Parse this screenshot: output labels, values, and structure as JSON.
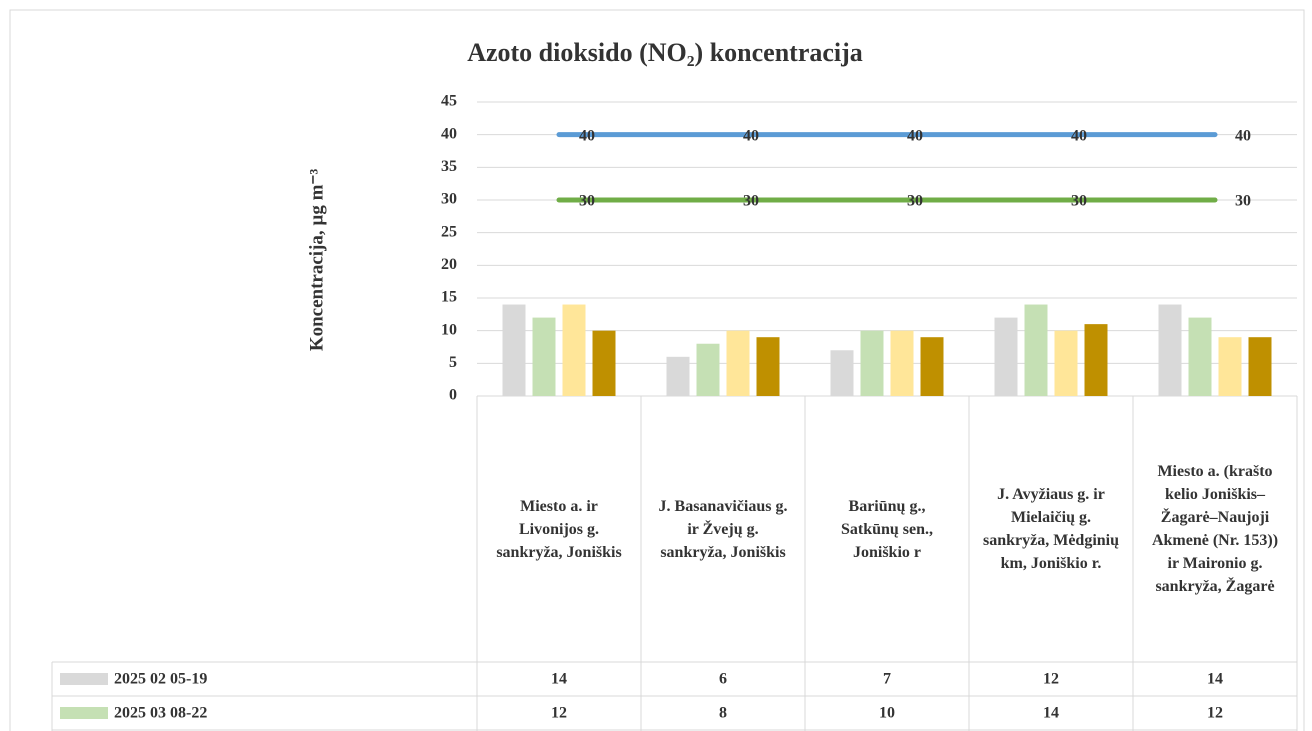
{
  "chart_data": {
    "type": "bar",
    "title": "Azoto dioksido (NO₂) koncentracija",
    "y_label": "Koncentracija, µg m⁻³",
    "categories": [
      "Miesto a. ir Livonijos g. sankryža, Joniškis",
      "J. Basanavičiaus g. ir Žvejų g. sankryža, Joniškis",
      "Bariūnų g., Satkūnų sen., Joniškio r",
      "J. Avyžiaus g. ir Mielaičių g. sankryža, Mėdginių km, Joniškio r.",
      "Miesto a. (krašto kelio Joniškis–Žagarė–Naujoji Akmenė (Nr. 153)) ir Maironio g. sankryža, Žagarė"
    ],
    "series": [
      {
        "name": "2025 02 05-19",
        "color": "#d9d9d9",
        "values": [
          14,
          6,
          7,
          12,
          14
        ]
      },
      {
        "name": "2025 03 08-22",
        "color": "#c5e0b4",
        "values": [
          12,
          8,
          10,
          14,
          12
        ]
      },
      {
        "color": "#ffe699",
        "values": [
          14,
          10,
          10,
          10,
          9
        ]
      },
      {
        "color": "#bf9000",
        "values": [
          10,
          9,
          9,
          11,
          9
        ]
      },
      {
        "type": "line",
        "color": "#5b9bd5",
        "values": [
          40,
          40,
          40,
          40,
          40
        ]
      },
      {
        "type": "line",
        "color": "#70ad47",
        "values": [
          30,
          30,
          30,
          30,
          30
        ]
      }
    ],
    "ylim": [
      0,
      45
    ],
    "yticks": [
      0,
      5,
      10,
      15,
      20,
      25,
      30,
      35,
      40,
      45
    ],
    "grid": true
  }
}
